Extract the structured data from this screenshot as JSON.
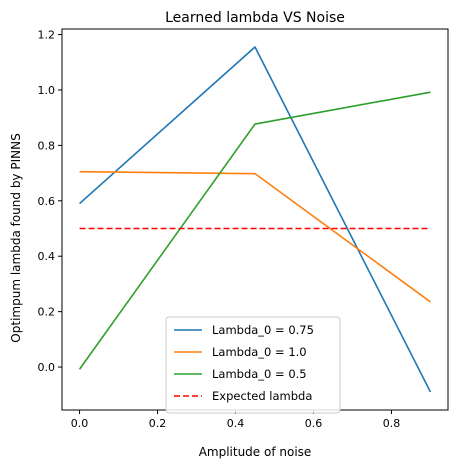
{
  "chart_data": {
    "type": "line",
    "title": "Learned lambda VS Noise",
    "xlabel": "Amplitude of noise",
    "ylabel": "Optimpum lambda found by PINNS",
    "xlim": [
      -0.045,
      0.945
    ],
    "ylim": [
      -0.155,
      1.22
    ],
    "xticks": [
      0.0,
      0.2,
      0.4,
      0.6,
      0.8
    ],
    "xtick_labels": [
      "0.0",
      "0.2",
      "0.4",
      "0.6",
      "0.8"
    ],
    "yticks": [
      0.0,
      0.2,
      0.4,
      0.6,
      0.8,
      1.0,
      1.2
    ],
    "ytick_labels": [
      "0.0",
      "0.2",
      "0.4",
      "0.6",
      "0.8",
      "1.0",
      "1.2"
    ],
    "grid": false,
    "legend_position": "lower center",
    "series": [
      {
        "name": "Lambda_0 = 0.75",
        "color": "#1f77b4",
        "dash": "solid",
        "x": [
          0.0,
          0.45,
          0.9
        ],
        "y": [
          0.59,
          1.155,
          -0.09
        ]
      },
      {
        "name": "Lambda_0 = 1.0",
        "color": "#ff7f0e",
        "dash": "solid",
        "x": [
          0.0,
          0.45,
          0.9
        ],
        "y": [
          0.705,
          0.698,
          0.235
        ]
      },
      {
        "name": "Lambda_0 = 0.5",
        "color": "#2ca02c",
        "dash": "solid",
        "x": [
          0.0,
          0.45,
          0.9
        ],
        "y": [
          -0.008,
          0.877,
          0.992
        ]
      },
      {
        "name": "Expected lambda",
        "color": "#ff0000",
        "dash": "dashed",
        "x": [
          0.0,
          0.9
        ],
        "y": [
          0.5,
          0.5
        ]
      }
    ]
  }
}
